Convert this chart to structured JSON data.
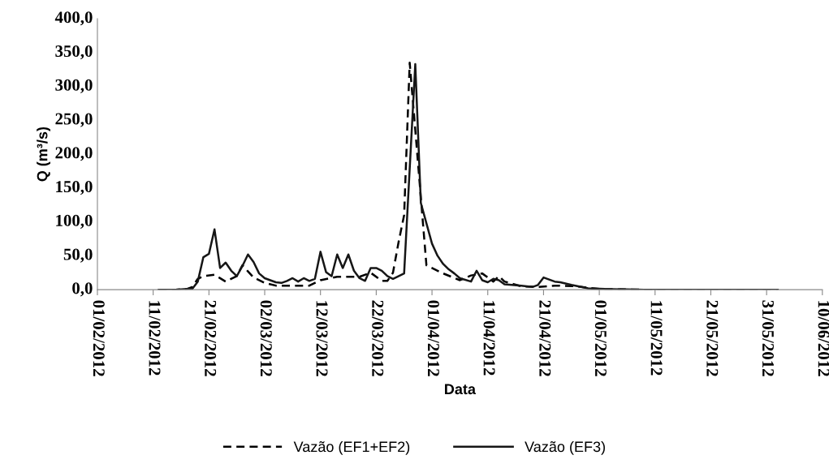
{
  "chart_data": {
    "type": "line",
    "xlabel": "Data",
    "ylabel": "Q (m³/s)",
    "xlim": [
      "2012-02-01",
      "2012-06-10"
    ],
    "xticks": [
      {
        "value": "2012-02-01",
        "label": "01/02/2012"
      },
      {
        "value": "2012-02-11",
        "label": "11/02/2012"
      },
      {
        "value": "2012-02-21",
        "label": "21/02/2012"
      },
      {
        "value": "2012-03-02",
        "label": "02/03/2012"
      },
      {
        "value": "2012-03-12",
        "label": "12/03/2012"
      },
      {
        "value": "2012-03-22",
        "label": "22/03/2012"
      },
      {
        "value": "2012-04-01",
        "label": "01/04/2012"
      },
      {
        "value": "2012-04-11",
        "label": "11/04/2012"
      },
      {
        "value": "2012-04-21",
        "label": "21/04/2012"
      },
      {
        "value": "2012-05-01",
        "label": "01/05/2012"
      },
      {
        "value": "2012-05-11",
        "label": "11/05/2012"
      },
      {
        "value": "2012-05-21",
        "label": "21/05/2012"
      },
      {
        "value": "2012-05-31",
        "label": "31/05/2012"
      },
      {
        "value": "2012-06-10",
        "label": "10/06/2012"
      }
    ],
    "ylim": [
      0,
      400
    ],
    "yticks": [
      {
        "value": 0,
        "label": "0,0"
      },
      {
        "value": 50,
        "label": "50,0"
      },
      {
        "value": 100,
        "label": "100,0"
      },
      {
        "value": 150,
        "label": "150,0"
      },
      {
        "value": 200,
        "label": "200,0"
      },
      {
        "value": 250,
        "label": "250,0"
      },
      {
        "value": 300,
        "label": "300,0"
      },
      {
        "value": 350,
        "label": "350,0"
      },
      {
        "value": 400,
        "label": "400,0"
      }
    ],
    "grid": false,
    "legend": "bottom",
    "marker": "none",
    "series": [
      {
        "name": "Vazão (EF1+EF2)",
        "color": "#000000",
        "line_style": "dashed",
        "x": [
          "2012-02-12",
          "2012-02-15",
          "2012-02-17",
          "2012-02-18",
          "2012-02-19",
          "2012-02-20",
          "2012-02-22",
          "2012-02-24",
          "2012-02-26",
          "2012-02-27",
          "2012-02-28",
          "2012-02-29",
          "2012-03-02",
          "2012-03-04",
          "2012-03-07",
          "2012-03-10",
          "2012-03-12",
          "2012-03-15",
          "2012-03-19",
          "2012-03-21",
          "2012-03-23",
          "2012-03-24",
          "2012-03-25",
          "2012-03-26",
          "2012-03-27",
          "2012-03-28",
          "2012-03-29",
          "2012-03-31",
          "2012-04-03",
          "2012-04-06",
          "2012-04-08",
          "2012-04-10",
          "2012-04-12",
          "2012-04-13",
          "2012-04-14",
          "2012-04-17",
          "2012-04-20",
          "2012-04-23",
          "2012-04-27",
          "2012-05-01",
          "2012-05-09",
          "2012-05-21",
          "2012-06-02"
        ],
        "values": [
          0,
          0,
          1,
          4,
          16,
          20,
          22,
          12,
          20,
          36,
          27,
          18,
          10,
          6,
          6,
          6,
          14,
          19,
          19,
          25,
          13,
          13,
          25,
          70,
          110,
          335,
          236,
          36,
          24,
          14,
          21,
          24,
          12,
          20,
          12,
          5,
          4,
          6,
          5,
          1,
          0,
          0,
          0
        ]
      },
      {
        "name": "Vazão (EF3)",
        "color": "#161616",
        "line_style": "solid",
        "x": [
          "2012-02-12",
          "2012-02-15",
          "2012-02-17",
          "2012-02-18",
          "2012-02-19",
          "2012-02-20",
          "2012-02-21",
          "2012-02-22",
          "2012-02-23",
          "2012-02-24",
          "2012-02-25",
          "2012-02-26",
          "2012-02-27",
          "2012-02-28",
          "2012-02-29",
          "2012-03-01",
          "2012-03-02",
          "2012-03-04",
          "2012-03-05",
          "2012-03-06",
          "2012-03-07",
          "2012-03-08",
          "2012-03-09",
          "2012-03-10",
          "2012-03-11",
          "2012-03-12",
          "2012-03-13",
          "2012-03-14",
          "2012-03-15",
          "2012-03-16",
          "2012-03-17",
          "2012-03-18",
          "2012-03-19",
          "2012-03-20",
          "2012-03-21",
          "2012-03-22",
          "2012-03-23",
          "2012-03-24",
          "2012-03-25",
          "2012-03-27",
          "2012-03-29",
          "2012-03-30",
          "2012-04-01",
          "2012-04-02",
          "2012-04-03",
          "2012-04-04",
          "2012-04-05",
          "2012-04-06",
          "2012-04-08",
          "2012-04-09",
          "2012-04-10",
          "2012-04-11",
          "2012-04-12",
          "2012-04-13",
          "2012-04-14",
          "2012-04-17",
          "2012-04-19",
          "2012-04-20",
          "2012-04-21",
          "2012-04-23",
          "2012-04-24",
          "2012-04-26",
          "2012-04-29",
          "2012-05-02",
          "2012-05-09",
          "2012-05-21",
          "2012-06-02"
        ],
        "values": [
          0,
          0,
          1,
          1,
          12,
          48,
          53,
          89,
          32,
          40,
          28,
          20,
          35,
          52,
          41,
          24,
          17,
          11,
          10,
          13,
          17,
          12,
          17,
          13,
          16,
          56,
          26,
          20,
          52,
          32,
          52,
          28,
          17,
          13,
          32,
          32,
          28,
          20,
          16,
          24,
          333,
          128,
          68,
          50,
          38,
          30,
          24,
          17,
          12,
          28,
          14,
          11,
          16,
          14,
          8,
          6,
          4,
          7,
          18,
          12,
          11,
          7,
          2,
          1,
          0,
          0,
          0
        ]
      }
    ]
  }
}
